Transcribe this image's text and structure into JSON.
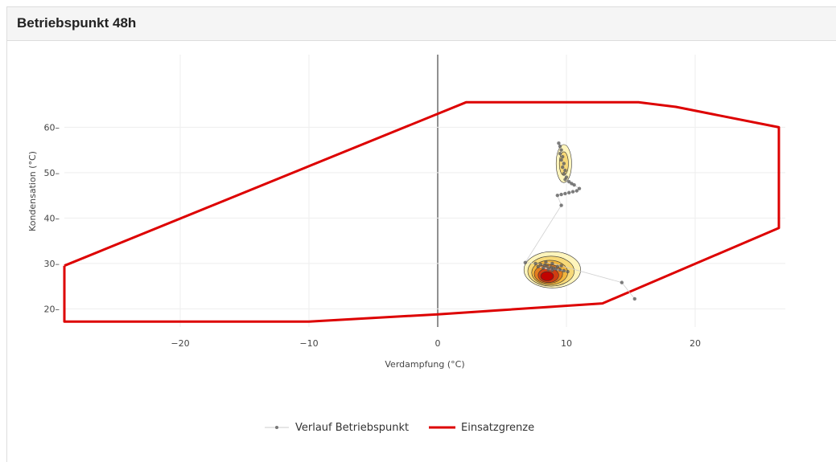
{
  "panel": {
    "title": "Betriebspunkt 48h"
  },
  "colors": {
    "boundary": "#dd0000",
    "points": "#555555",
    "grid": "#eeeeee",
    "density_low": "#fff5b0",
    "density_high": "#cc0000"
  },
  "chart_data": {
    "type": "scatter",
    "title": "",
    "xlabel": "Verdampfung (°C)",
    "ylabel": "Kondensation (°C)",
    "xlim": [
      -29,
      27
    ],
    "ylim": [
      16,
      76
    ],
    "xticks": [
      -20,
      -10,
      0,
      10,
      20
    ],
    "xtick_labels": [
      "−20",
      "−10",
      "0",
      "10",
      "20"
    ],
    "yticks": [
      20,
      30,
      40,
      50,
      60
    ],
    "ytick_labels": [
      "20",
      "30",
      "40",
      "50",
      "60"
    ],
    "grid": true,
    "legend_position": "bottom-center",
    "legend": [
      "Verlauf Betriebspunkt",
      "Einsatzgrenze"
    ],
    "series": [
      {
        "name": "Einsatzgrenze",
        "type": "line",
        "points": [
          [
            -29,
            29.5
          ],
          [
            2.2,
            65.5
          ],
          [
            15.6,
            65.5
          ],
          [
            18.5,
            64.5
          ],
          [
            26.5,
            60
          ],
          [
            26.5,
            37.8
          ],
          [
            12.8,
            21.2
          ],
          [
            0,
            18.8
          ],
          [
            -10,
            17.2
          ],
          [
            -29,
            17.2
          ],
          [
            -29,
            29.5
          ]
        ]
      },
      {
        "name": "Verlauf Betriebspunkt",
        "type": "scatter",
        "points": [
          [
            9.4,
            56.5
          ],
          [
            9.5,
            55.8
          ],
          [
            9.6,
            55.0
          ],
          [
            9.5,
            54.2
          ],
          [
            9.7,
            53.5
          ],
          [
            9.6,
            52.8
          ],
          [
            9.8,
            52.0
          ],
          [
            9.7,
            51.2
          ],
          [
            9.9,
            50.5
          ],
          [
            9.8,
            49.8
          ],
          [
            10.0,
            49.0
          ],
          [
            9.9,
            48.5
          ],
          [
            10.2,
            48.0
          ],
          [
            10.4,
            47.6
          ],
          [
            10.6,
            47.3
          ],
          [
            11.0,
            46.5
          ],
          [
            10.8,
            46.0
          ],
          [
            10.5,
            45.8
          ],
          [
            10.2,
            45.6
          ],
          [
            9.9,
            45.4
          ],
          [
            9.6,
            45.2
          ],
          [
            9.3,
            45.0
          ],
          [
            9.6,
            42.8
          ],
          [
            6.8,
            30.2
          ],
          [
            7.6,
            30.0
          ],
          [
            8.0,
            29.8
          ],
          [
            8.3,
            29.6
          ],
          [
            8.5,
            29.4
          ],
          [
            8.8,
            29.2
          ],
          [
            9.0,
            29.0
          ],
          [
            9.2,
            28.8
          ],
          [
            9.5,
            28.6
          ],
          [
            9.8,
            28.4
          ],
          [
            10.1,
            28.2
          ],
          [
            7.8,
            29.3
          ],
          [
            8.2,
            29.0
          ],
          [
            8.6,
            28.7
          ],
          [
            8.9,
            28.5
          ],
          [
            9.3,
            29.3
          ],
          [
            9.6,
            29.5
          ],
          [
            8.4,
            30.3
          ],
          [
            8.9,
            30.0
          ],
          [
            14.3,
            25.8
          ],
          [
            15.3,
            22.2
          ]
        ]
      }
    ],
    "density_contours": [
      {
        "level": 1,
        "center": [
          8.9,
          28.6
        ],
        "rx": 2.2,
        "ry": 4.0
      },
      {
        "level": 2,
        "center": [
          8.8,
          28.3
        ],
        "rx": 1.8,
        "ry": 3.3
      },
      {
        "level": 3,
        "center": [
          8.7,
          28.0
        ],
        "rx": 1.4,
        "ry": 2.7
      },
      {
        "level": 4,
        "center": [
          8.6,
          27.7
        ],
        "rx": 1.1,
        "ry": 2.1
      },
      {
        "level": 5,
        "center": [
          8.6,
          27.4
        ],
        "rx": 0.8,
        "ry": 1.6
      },
      {
        "level": 6,
        "center": [
          8.5,
          27.2
        ],
        "rx": 0.5,
        "ry": 1.0
      },
      {
        "level": 1,
        "center": [
          9.8,
          52.0
        ],
        "rx": 0.6,
        "ry": 4.2
      },
      {
        "level": 2,
        "center": [
          9.8,
          52.0
        ],
        "rx": 0.35,
        "ry": 2.6
      }
    ]
  }
}
